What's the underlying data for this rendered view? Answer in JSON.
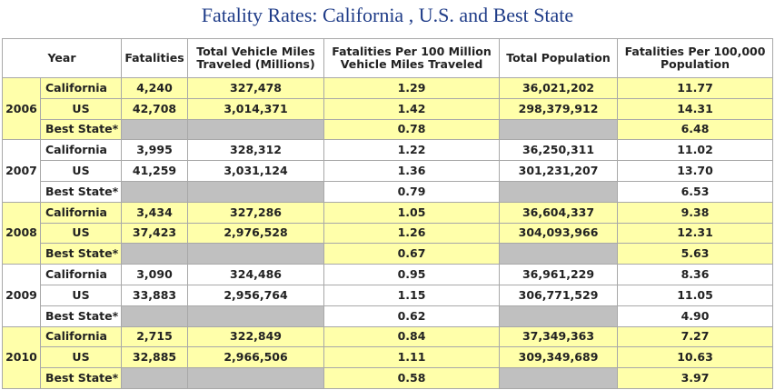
{
  "title": "Fatality Rates: California , U.S. and Best State",
  "table": {
    "headers": [
      "Year",
      "Fatalities",
      "Total Vehicle Miles Traveled (Millions)",
      "Fatalities Per 100 Million Vehicle Miles Traveled",
      "Total Population",
      "Fatalities Per 100,000 Population"
    ],
    "groups": [
      {
        "year": "2006",
        "rows": [
          {
            "region": "California",
            "fatalities": "4,240",
            "vmt": "327,478",
            "rate_vmt": "1.29",
            "population": "36,021,202",
            "rate_pop": "11.77"
          },
          {
            "region": "US",
            "fatalities": "42,708",
            "vmt": "3,014,371",
            "rate_vmt": "1.42",
            "population": "298,379,912",
            "rate_pop": "14.31"
          },
          {
            "region": "Best State*",
            "rate_vmt": "0.78",
            "rate_pop": "6.48"
          }
        ]
      },
      {
        "year": "2007",
        "rows": [
          {
            "region": "California",
            "fatalities": "3,995",
            "vmt": "328,312",
            "rate_vmt": "1.22",
            "population": "36,250,311",
            "rate_pop": "11.02"
          },
          {
            "region": "US",
            "fatalities": "41,259",
            "vmt": "3,031,124",
            "rate_vmt": "1.36",
            "population": "301,231,207",
            "rate_pop": "13.70"
          },
          {
            "region": "Best State*",
            "rate_vmt": "0.79",
            "rate_pop": "6.53"
          }
        ]
      },
      {
        "year": "2008",
        "rows": [
          {
            "region": "California",
            "fatalities": "3,434",
            "vmt": "327,286",
            "rate_vmt": "1.05",
            "population": "36,604,337",
            "rate_pop": "9.38"
          },
          {
            "region": "US",
            "fatalities": "37,423",
            "vmt": "2,976,528",
            "rate_vmt": "1.26",
            "population": "304,093,966",
            "rate_pop": "12.31"
          },
          {
            "region": "Best State*",
            "rate_vmt": "0.67",
            "rate_pop": "5.63"
          }
        ]
      },
      {
        "year": "2009",
        "rows": [
          {
            "region": "California",
            "fatalities": "3,090",
            "vmt": "324,486",
            "rate_vmt": "0.95",
            "population": "36,961,229",
            "rate_pop": "8.36"
          },
          {
            "region": "US",
            "fatalities": "33,883",
            "vmt": "2,956,764",
            "rate_vmt": "1.15",
            "population": "306,771,529",
            "rate_pop": "11.05"
          },
          {
            "region": "Best State*",
            "rate_vmt": "0.62",
            "rate_pop": "4.90"
          }
        ]
      },
      {
        "year": "2010",
        "rows": [
          {
            "region": "California",
            "fatalities": "2,715",
            "vmt": "322,849",
            "rate_vmt": "0.84",
            "population": "37,349,363",
            "rate_pop": "7.27"
          },
          {
            "region": "US",
            "fatalities": "32,885",
            "vmt": "2,966,506",
            "rate_vmt": "1.11",
            "population": "309,349,689",
            "rate_pop": "10.63"
          },
          {
            "region": "Best State*",
            "rate_vmt": "0.58",
            "rate_pop": "3.97"
          }
        ]
      }
    ]
  }
}
